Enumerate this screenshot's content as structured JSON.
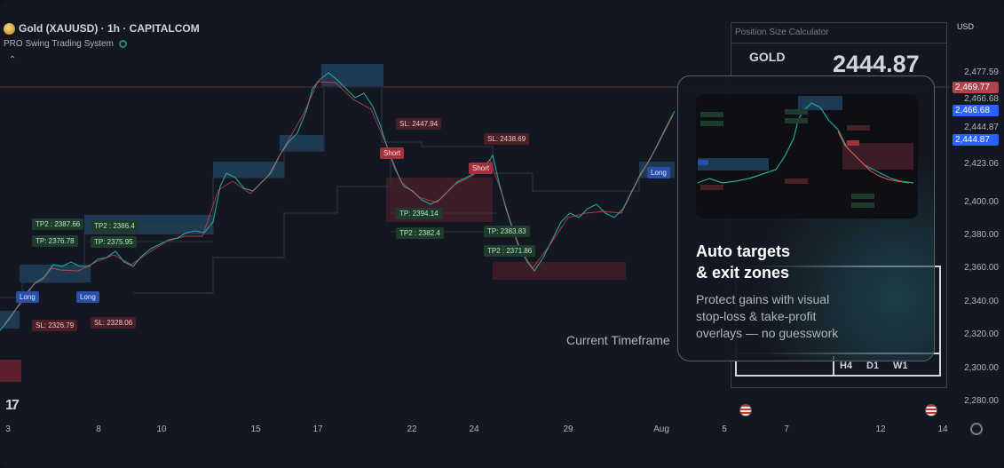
{
  "header": {
    "symbol": "Gold (XAUUSD) · 1h · CAPITALCOM",
    "indicator": "PRO Swing Trading System",
    "collapse_glyph": "⌃",
    "currency": "USD"
  },
  "price_axis": {
    "labels": [
      "2,477.59",
      "2,466.68",
      "2,444.87",
      "2,423.06",
      "2,400.00",
      "2,380.00",
      "2,360.00",
      "2,340.00",
      "2,320.00",
      "2,300.00",
      "2,280.00"
    ],
    "tags": [
      {
        "text": "2,469.77",
        "color": "#b2414c"
      },
      {
        "text": "2,466.68",
        "color": "#2962ff"
      },
      {
        "text": "2,444.87",
        "color": "#2962ff"
      }
    ],
    "gold_tag": "GOLD"
  },
  "time_axis": {
    "labels": [
      "3",
      "8",
      "10",
      "15",
      "17",
      "22",
      "24",
      "29",
      "Aug",
      "5",
      "7",
      "12",
      "14"
    ]
  },
  "markers": {
    "tp2_1": "TP2 :  2387.66",
    "tp_1": "TP:  2376.78",
    "tp2_2": "TP2 :  2386.4",
    "tp_2": "TP:  2375.95",
    "long_1": "Long",
    "long_2": "Long",
    "long_3": "Long",
    "sl_1": "SL:  2326.79",
    "sl_2": "SL:  2328.06",
    "sl_3": "SL:  2447.94",
    "sl_4": "SL:  2438.69",
    "short_1": "Short",
    "short_2": "Short",
    "tp_3": "TP:  2394.14",
    "tp2_3": "TP2 :  2382.4",
    "tp_4": "TP:  2383.83",
    "tp2_4": "TP2 :  2371.86"
  },
  "calculator": {
    "title": "Position Size Calculator",
    "symbol": "GOLD",
    "price": "2444.87",
    "timeframes": [
      "H4",
      "D1",
      "W1"
    ]
  },
  "current_timeframe_label": "Current Timeframe",
  "promo_card": {
    "title_line1": "Auto targets",
    "title_line2": "& exit zones",
    "body_line1": "Protect gains with visual",
    "body_line2": "stop-loss & take-profit",
    "body_line3": "overlays — no guesswork"
  },
  "colors": {
    "background": "#131722",
    "bull": "#26a69a",
    "bear": "#ef5350",
    "zone_blue": "#1e3a52",
    "zone_red": "#3b1c27"
  },
  "icons": {
    "logo": "tradingview-logo-icon",
    "settings": "gear-icon",
    "flag": "us-flag-icon"
  }
}
